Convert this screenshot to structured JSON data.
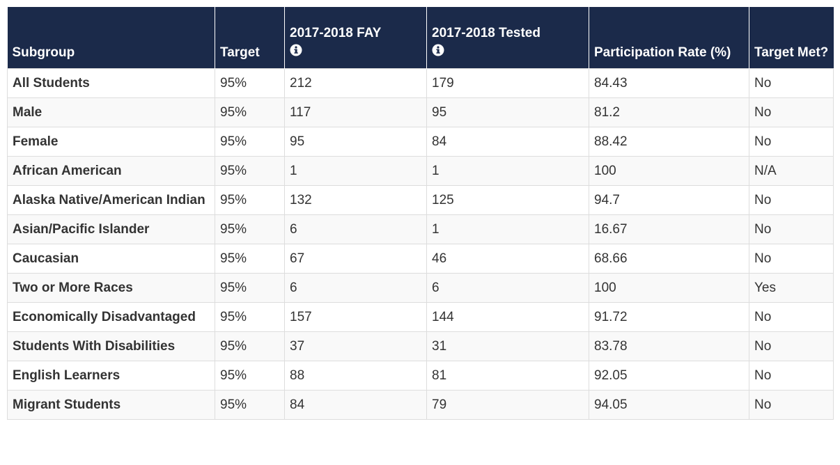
{
  "table": {
    "headers": [
      "Subgroup",
      "Target",
      "2017-2018 FAY",
      "2017-2018 Tested",
      "Participation Rate (%)",
      "Target Met?"
    ],
    "rows": [
      [
        "All Students",
        "95%",
        "212",
        "179",
        "84.43",
        "No"
      ],
      [
        "Male",
        "95%",
        "117",
        "95",
        "81.2",
        "No"
      ],
      [
        "Female",
        "95%",
        "95",
        "84",
        "88.42",
        "No"
      ],
      [
        "African American",
        "95%",
        "1",
        "1",
        "100",
        "N/A"
      ],
      [
        "Alaska Native/American Indian",
        "95%",
        "132",
        "125",
        "94.7",
        "No"
      ],
      [
        "Asian/Pacific Islander",
        "95%",
        "6",
        "1",
        "16.67",
        "No"
      ],
      [
        "Caucasian",
        "95%",
        "67",
        "46",
        "68.66",
        "No"
      ],
      [
        "Two or More Races",
        "95%",
        "6",
        "6",
        "100",
        "Yes"
      ],
      [
        "Economically Disadvantaged",
        "95%",
        "157",
        "144",
        "91.72",
        "No"
      ],
      [
        "Students With Disabilities",
        "95%",
        "37",
        "31",
        "83.78",
        "No"
      ],
      [
        "English Learners",
        "95%",
        "88",
        "81",
        "92.05",
        "No"
      ],
      [
        "Migrant Students",
        "95%",
        "84",
        "79",
        "94.05",
        "No"
      ]
    ]
  }
}
